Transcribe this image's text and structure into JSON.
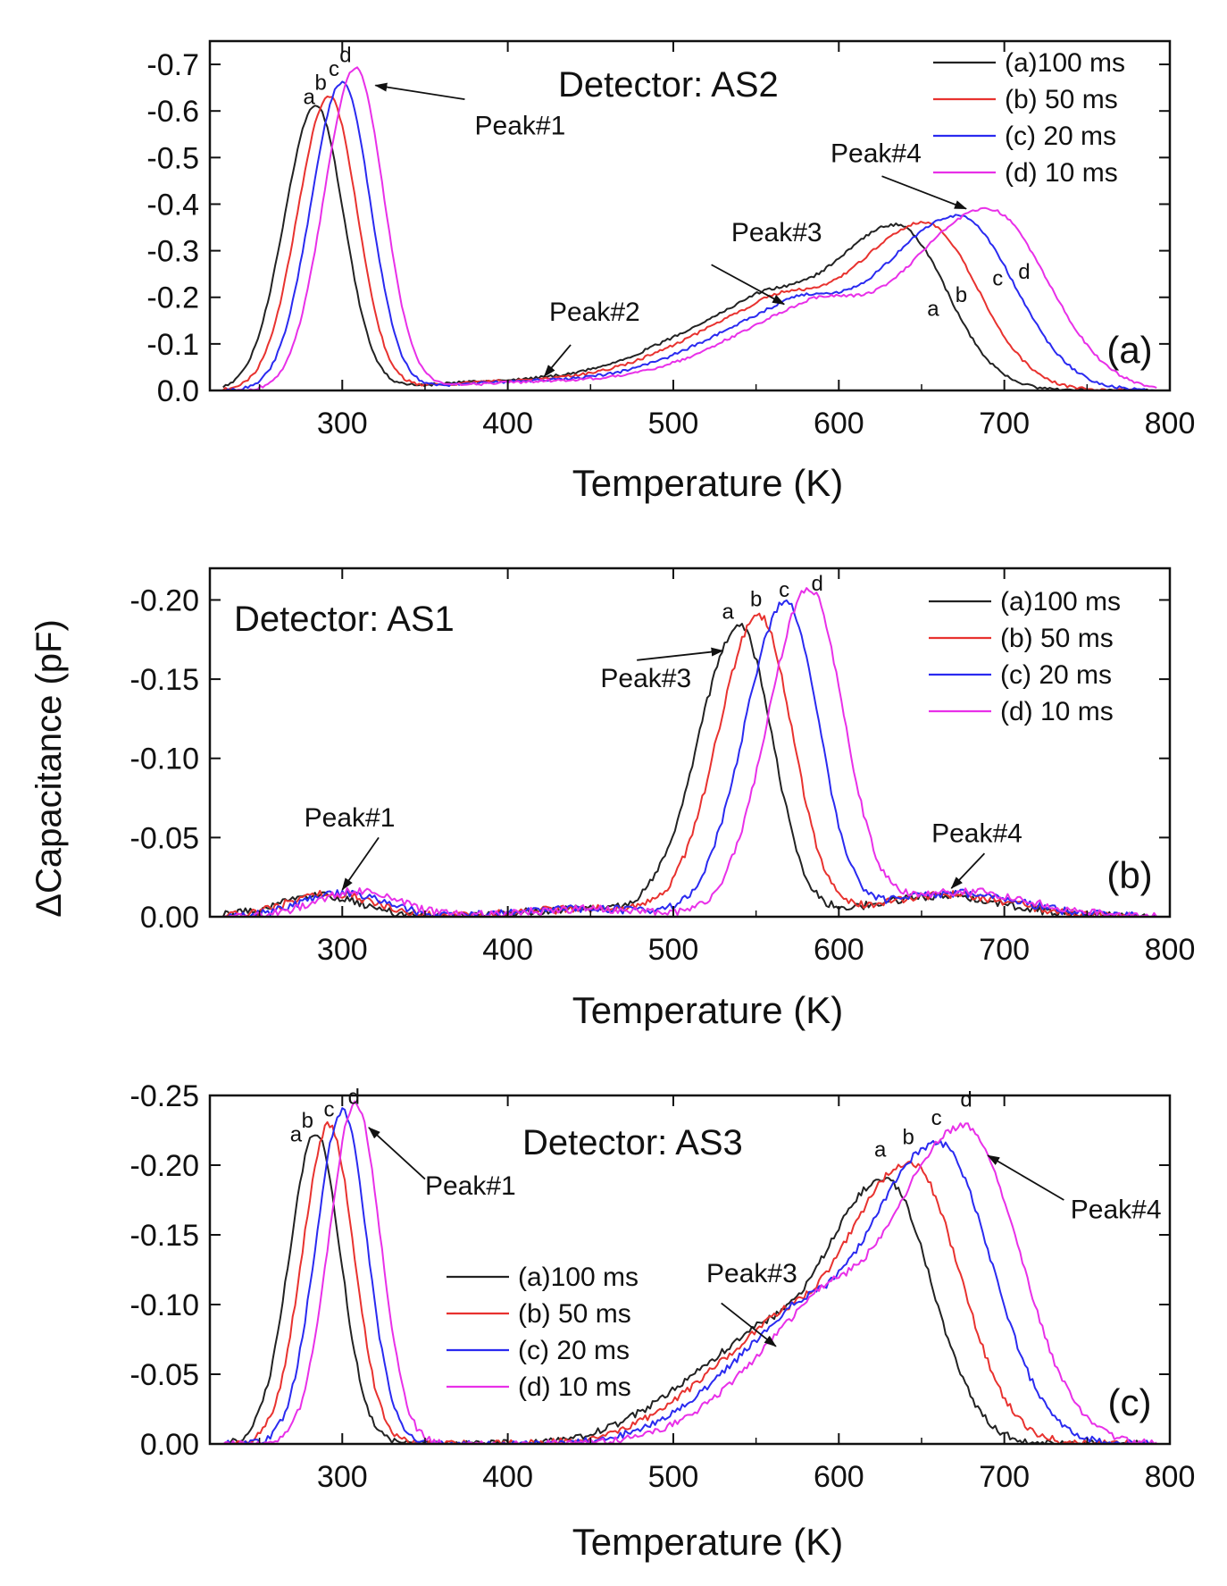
{
  "figure": {
    "shared_ylabel": "ΔCapacitance (pF)"
  },
  "chart_data": [
    {
      "type": "line",
      "panel_label": "(a)",
      "title": "Detector: AS2",
      "xlabel": "Temperature (K)",
      "ylabel": "ΔCapacitance (pF)",
      "xlim": [
        220,
        800
      ],
      "ylim": [
        0.0,
        -0.75
      ],
      "xticks": [
        300,
        400,
        500,
        600,
        700,
        800
      ],
      "yticks": [
        0.0,
        -0.1,
        -0.2,
        -0.3,
        -0.4,
        -0.5,
        -0.6,
        -0.7
      ],
      "ytick_labels": [
        "0.0",
        "-0.1",
        "-0.2",
        "-0.3",
        "-0.4",
        "-0.5",
        "-0.6",
        "-0.7"
      ],
      "xtick_labels": [
        "300",
        "400",
        "500",
        "600",
        "700",
        "800"
      ],
      "legend": {
        "position": "top-right",
        "entries": [
          "(a)100 ms",
          "(b) 50 ms",
          "(c) 20 ms",
          "(d) 10 ms"
        ]
      },
      "series": [
        {
          "name": "(a)100 ms",
          "color": "#222222",
          "curve_letter": "a",
          "components": [
            [
              284,
              -0.61,
              19,
              17
            ],
            [
              400,
              -0.018,
              55,
              55
            ],
            [
              545,
              -0.15,
              55,
              28
            ],
            [
              635,
              -0.355,
              45,
              30
            ]
          ],
          "noise": 0.003
        },
        {
          "name": "(b) 50 ms",
          "color": "#e8322f",
          "curve_letter": "b",
          "components": [
            [
              292,
              -0.63,
              19,
              17
            ],
            [
              408,
              -0.018,
              55,
              55
            ],
            [
              555,
              -0.15,
              55,
              28
            ],
            [
              652,
              -0.36,
              48,
              32
            ]
          ],
          "noise": 0.003
        },
        {
          "name": "(c) 20 ms",
          "color": "#2a2af0",
          "curve_letter": "c",
          "components": [
            [
              300,
              -0.66,
              19,
              17
            ],
            [
              416,
              -0.018,
              55,
              55
            ],
            [
              568,
              -0.15,
              55,
              28
            ],
            [
              672,
              -0.375,
              50,
              34
            ]
          ],
          "noise": 0.003
        },
        {
          "name": "(d) 10 ms",
          "color": "#e830e8",
          "curve_letter": "d",
          "components": [
            [
              308,
              -0.69,
              19,
              17
            ],
            [
              424,
              -0.018,
              55,
              55
            ],
            [
              580,
              -0.15,
              55,
              28
            ],
            [
              690,
              -0.39,
              52,
              36
            ]
          ],
          "noise": 0.003
        }
      ],
      "curve_labels": [
        {
          "text": "a",
          "x": 280,
          "y": -0.615
        },
        {
          "text": "b",
          "x": 287,
          "y": -0.645
        },
        {
          "text": "c",
          "x": 295,
          "y": -0.675
        },
        {
          "text": "d",
          "x": 302,
          "y": -0.705
        },
        {
          "text": "a",
          "x": 657,
          "y": -0.16
        },
        {
          "text": "b",
          "x": 674,
          "y": -0.19
        },
        {
          "text": "c",
          "x": 696,
          "y": -0.225
        },
        {
          "text": "d",
          "x": 712,
          "y": -0.24
        }
      ],
      "annotations": [
        {
          "text": "Peak#1",
          "text_x": 380,
          "text_y": -0.55,
          "arrow_from": [
            374,
            -0.625
          ],
          "arrow_to": [
            320,
            -0.655
          ]
        },
        {
          "text": "Peak#2",
          "text_x": 425,
          "text_y": -0.15,
          "arrow_from": [
            438,
            -0.098
          ],
          "arrow_to": [
            422,
            -0.03
          ]
        },
        {
          "text": "Peak#3",
          "text_x": 535,
          "text_y": -0.32,
          "arrow_from": [
            523,
            -0.27
          ],
          "arrow_to": [
            567,
            -0.185
          ]
        },
        {
          "text": "Peak#4",
          "text_x": 595,
          "text_y": -0.49,
          "arrow_from": [
            626,
            -0.46
          ],
          "arrow_to": [
            677,
            -0.39
          ]
        }
      ]
    },
    {
      "type": "line",
      "panel_label": "(b)",
      "title": "Detector: AS1",
      "xlabel": "Temperature (K)",
      "ylabel": "ΔCapacitance (pF)",
      "xlim": [
        220,
        800
      ],
      "ylim": [
        0.0,
        -0.22
      ],
      "xticks": [
        300,
        400,
        500,
        600,
        700,
        800
      ],
      "yticks": [
        0.0,
        -0.05,
        -0.1,
        -0.15,
        -0.2
      ],
      "ytick_labels": [
        "0.00",
        "-0.05",
        "-0.10",
        "-0.15",
        "-0.20"
      ],
      "xtick_labels": [
        "300",
        "400",
        "500",
        "600",
        "700",
        "800"
      ],
      "legend": {
        "position": "top-right",
        "entries": [
          "(a)100 ms",
          "(b) 50 ms",
          "(c) 20 ms",
          "(d) 10 ms"
        ]
      },
      "series": [
        {
          "name": "(a)100 ms",
          "color": "#222222",
          "curve_letter": "a",
          "components": [
            [
              285,
              -0.014,
              25,
              25
            ],
            [
              450,
              -0.005,
              40,
              40
            ],
            [
              540,
              -0.183,
              25,
              20
            ],
            [
              660,
              -0.013,
              40,
              40
            ]
          ],
          "noise": 0.0025
        },
        {
          "name": "(b) 50 ms",
          "color": "#e8322f",
          "curve_letter": "b",
          "components": [
            [
              293,
              -0.015,
              25,
              25
            ],
            [
              450,
              -0.005,
              40,
              40
            ],
            [
              552,
              -0.19,
              25,
              20
            ],
            [
              665,
              -0.014,
              40,
              40
            ]
          ],
          "noise": 0.0025
        },
        {
          "name": "(c) 20 ms",
          "color": "#2a2af0",
          "curve_letter": "c",
          "components": [
            [
              301,
              -0.015,
              25,
              25
            ],
            [
              450,
              -0.005,
              40,
              40
            ],
            [
              568,
              -0.198,
              25,
              20
            ],
            [
              670,
              -0.015,
              40,
              40
            ]
          ],
          "noise": 0.0025
        },
        {
          "name": "(d) 10 ms",
          "color": "#e830e8",
          "curve_letter": "d",
          "components": [
            [
              309,
              -0.016,
              25,
              25
            ],
            [
              450,
              -0.005,
              40,
              40
            ],
            [
              582,
              -0.206,
              25,
              21
            ],
            [
              675,
              -0.016,
              40,
              40
            ]
          ],
          "noise": 0.0025
        }
      ],
      "curve_labels": [
        {
          "text": "a",
          "x": 533,
          "y": -0.188
        },
        {
          "text": "b",
          "x": 550,
          "y": -0.196
        },
        {
          "text": "c",
          "x": 567,
          "y": -0.202
        },
        {
          "text": "d",
          "x": 587,
          "y": -0.206
        }
      ],
      "annotations": [
        {
          "text": "Peak#1",
          "text_x": 277,
          "text_y": -0.057,
          "arrow_from": [
            322,
            -0.05
          ],
          "arrow_to": [
            300,
            -0.017
          ]
        },
        {
          "text": "Peak#3",
          "text_x": 456,
          "text_y": -0.145,
          "arrow_from": [
            478,
            -0.162
          ],
          "arrow_to": [
            530,
            -0.168
          ]
        },
        {
          "text": "Peak#4",
          "text_x": 656,
          "text_y": -0.047,
          "arrow_from": [
            688,
            -0.04
          ],
          "arrow_to": [
            668,
            -0.018
          ]
        }
      ]
    },
    {
      "type": "line",
      "panel_label": "(c)",
      "title": "Detector: AS3",
      "xlabel": "Temperature (K)",
      "ylabel": "ΔCapacitance (pF)",
      "xlim": [
        220,
        800
      ],
      "ylim": [
        0.0,
        -0.25
      ],
      "xticks": [
        300,
        400,
        500,
        600,
        700,
        800
      ],
      "yticks": [
        0.0,
        -0.05,
        -0.1,
        -0.15,
        -0.2,
        -0.25
      ],
      "ytick_labels": [
        "0.00",
        "-0.05",
        "-0.10",
        "-0.15",
        "-0.20",
        "-0.25"
      ],
      "xtick_labels": [
        "300",
        "400",
        "500",
        "600",
        "700",
        "800"
      ],
      "legend": {
        "position": "center-left",
        "entries": [
          "(a)100 ms",
          "(b) 50 ms",
          "(c) 20 ms",
          "(d) 10 ms"
        ]
      },
      "series": [
        {
          "name": "(a)100 ms",
          "color": "#222222",
          "curve_letter": "a",
          "components": [
            [
              284,
              -0.224,
              16,
              15
            ],
            [
              540,
              -0.055,
              45,
              25
            ],
            [
              628,
              -0.19,
              42,
              28
            ]
          ],
          "noise": 0.0025
        },
        {
          "name": "(b) 50 ms",
          "color": "#e8322f",
          "curve_letter": "b",
          "components": [
            [
              292,
              -0.229,
              16,
              15
            ],
            [
              552,
              -0.058,
              45,
              25
            ],
            [
              643,
              -0.202,
              45,
              30
            ]
          ],
          "noise": 0.0025
        },
        {
          "name": "(c) 20 ms",
          "color": "#2a2af0",
          "curve_letter": "c",
          "components": [
            [
              300,
              -0.239,
              16,
              15
            ],
            [
              565,
              -0.062,
              45,
              25
            ],
            [
              660,
              -0.216,
              48,
              32
            ]
          ],
          "noise": 0.0025
        },
        {
          "name": "(d) 10 ms",
          "color": "#e830e8",
          "curve_letter": "d",
          "components": [
            [
              308,
              -0.245,
              16,
              15
            ],
            [
              580,
              -0.066,
              45,
              25
            ],
            [
              676,
              -0.228,
              50,
              33
            ]
          ],
          "noise": 0.0025
        }
      ],
      "curve_labels": [
        {
          "text": "a",
          "x": 272,
          "y": -0.217
        },
        {
          "text": "b",
          "x": 279,
          "y": -0.227
        },
        {
          "text": "c",
          "x": 292,
          "y": -0.235
        },
        {
          "text": "d",
          "x": 307,
          "y": -0.244
        },
        {
          "text": "a",
          "x": 625,
          "y": -0.206
        },
        {
          "text": "b",
          "x": 642,
          "y": -0.215
        },
        {
          "text": "c",
          "x": 659,
          "y": -0.229
        },
        {
          "text": "d",
          "x": 677,
          "y": -0.242
        }
      ],
      "annotations": [
        {
          "text": "Peak#1",
          "text_x": 350,
          "text_y": -0.179,
          "arrow_from": [
            350,
            -0.19
          ],
          "arrow_to": [
            316,
            -0.227
          ]
        },
        {
          "text": "Peak#3",
          "text_x": 520,
          "text_y": -0.116,
          "arrow_from": [
            529,
            -0.101
          ],
          "arrow_to": [
            562,
            -0.07
          ]
        },
        {
          "text": "Peak#4",
          "text_x": 740,
          "text_y": -0.162,
          "arrow_from": [
            736,
            -0.175
          ],
          "arrow_to": [
            690,
            -0.207
          ]
        }
      ]
    }
  ]
}
